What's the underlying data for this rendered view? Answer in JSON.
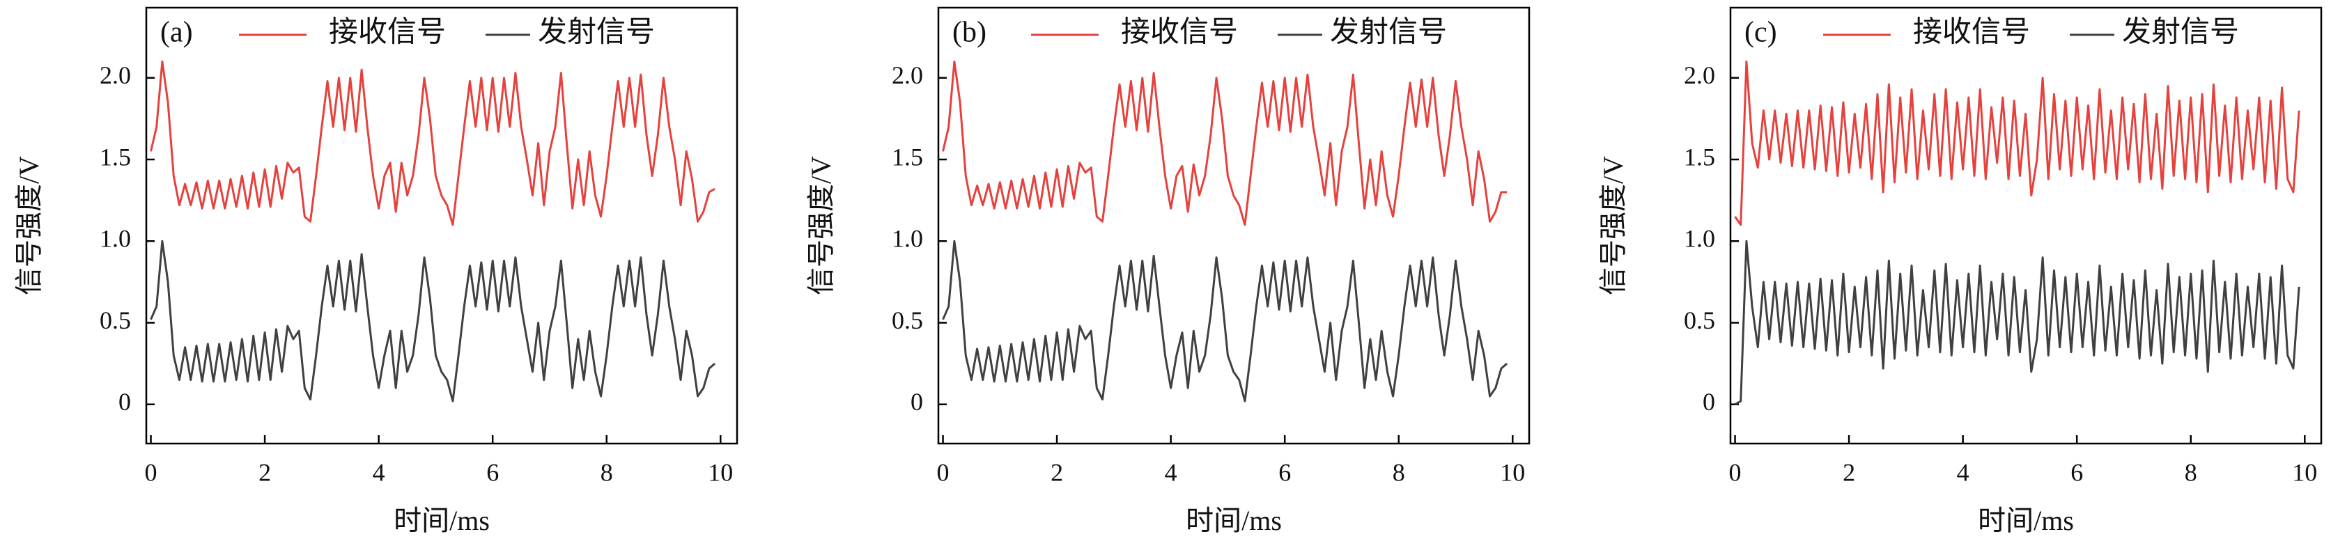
{
  "chart_data": [
    {
      "type": "line",
      "panel_label": "(a)",
      "x_label": "时间/ms",
      "y_label": "信号强度/V",
      "x": [
        0,
        0.1,
        0.2,
        0.3,
        0.4,
        0.5,
        0.6,
        0.7,
        0.8,
        0.9,
        1,
        1.1,
        1.2,
        1.3,
        1.4,
        1.5,
        1.6,
        1.7,
        1.8,
        1.9,
        2,
        2.1,
        2.2,
        2.3,
        2.4,
        2.5,
        2.6,
        2.7,
        2.8,
        2.9,
        3,
        3.1,
        3.2,
        3.3,
        3.4,
        3.5,
        3.6,
        3.7,
        3.8,
        3.9,
        4,
        4.1,
        4.2,
        4.3,
        4.4,
        4.5,
        4.6,
        4.7,
        4.8,
        4.9,
        5,
        5.1,
        5.2,
        5.3,
        5.4,
        5.5,
        5.6,
        5.7,
        5.8,
        5.9,
        6,
        6.1,
        6.2,
        6.3,
        6.4,
        6.5,
        6.6,
        6.7,
        6.8,
        6.9,
        7,
        7.1,
        7.2,
        7.3,
        7.4,
        7.5,
        7.6,
        7.7,
        7.8,
        7.9,
        8,
        8.1,
        8.2,
        8.3,
        8.4,
        8.5,
        8.6,
        8.7,
        8.8,
        8.9,
        9,
        9.1,
        9.2,
        9.3,
        9.4,
        9.5,
        9.6,
        9.7,
        9.8,
        9.9
      ],
      "series": [
        {
          "name": "接收信号",
          "color": "#e5413d",
          "values": [
            1.55,
            1.7,
            2.1,
            1.85,
            1.4,
            1.22,
            1.35,
            1.22,
            1.36,
            1.2,
            1.37,
            1.2,
            1.37,
            1.2,
            1.38,
            1.21,
            1.4,
            1.2,
            1.42,
            1.21,
            1.44,
            1.21,
            1.46,
            1.26,
            1.48,
            1.42,
            1.45,
            1.15,
            1.12,
            1.4,
            1.7,
            1.98,
            1.7,
            2.0,
            1.68,
            2.0,
            1.67,
            2.05,
            1.7,
            1.4,
            1.2,
            1.4,
            1.48,
            1.18,
            1.48,
            1.28,
            1.4,
            1.65,
            2.0,
            1.75,
            1.4,
            1.28,
            1.22,
            1.1,
            1.4,
            1.7,
            1.98,
            1.7,
            2.0,
            1.68,
            2.0,
            1.67,
            2.0,
            1.7,
            2.03,
            1.7,
            1.5,
            1.28,
            1.6,
            1.22,
            1.55,
            1.7,
            2.03,
            1.6,
            1.2,
            1.5,
            1.22,
            1.55,
            1.28,
            1.15,
            1.4,
            1.7,
            1.98,
            1.7,
            2.0,
            1.7,
            2.02,
            1.65,
            1.4,
            1.65,
            2.0,
            1.7,
            1.5,
            1.22,
            1.55,
            1.38,
            1.12,
            1.18,
            1.3,
            1.32
          ]
        },
        {
          "name": "发射信号",
          "color": "#404040",
          "values": [
            0.52,
            0.6,
            1.0,
            0.75,
            0.3,
            0.15,
            0.35,
            0.15,
            0.36,
            0.14,
            0.37,
            0.14,
            0.37,
            0.14,
            0.38,
            0.15,
            0.4,
            0.14,
            0.42,
            0.15,
            0.44,
            0.15,
            0.46,
            0.2,
            0.48,
            0.4,
            0.45,
            0.1,
            0.03,
            0.3,
            0.6,
            0.85,
            0.6,
            0.88,
            0.58,
            0.88,
            0.57,
            0.92,
            0.6,
            0.3,
            0.1,
            0.3,
            0.45,
            0.1,
            0.45,
            0.2,
            0.3,
            0.55,
            0.9,
            0.65,
            0.3,
            0.2,
            0.15,
            0.02,
            0.3,
            0.6,
            0.85,
            0.6,
            0.87,
            0.58,
            0.88,
            0.57,
            0.88,
            0.6,
            0.9,
            0.6,
            0.4,
            0.2,
            0.5,
            0.15,
            0.45,
            0.6,
            0.88,
            0.5,
            0.1,
            0.4,
            0.15,
            0.45,
            0.2,
            0.05,
            0.3,
            0.6,
            0.85,
            0.6,
            0.88,
            0.6,
            0.9,
            0.55,
            0.3,
            0.55,
            0.88,
            0.6,
            0.4,
            0.15,
            0.45,
            0.3,
            0.05,
            0.1,
            0.22,
            0.25
          ]
        }
      ],
      "xlim": [
        -0.08,
        10.29
      ],
      "ylim": [
        -0.24,
        2.43
      ],
      "xticks": [
        0,
        2,
        4,
        6,
        8,
        10
      ],
      "yticks": [
        0,
        0.5,
        {
          "value": 1,
          "label": "1.0"
        },
        1.5,
        {
          "value": 2,
          "label": "2.0"
        }
      ]
    },
    {
      "type": "line",
      "panel_label": "(b)",
      "x_label": "时间/ms",
      "y_label": "信号强度/V",
      "x": [
        0,
        0.1,
        0.2,
        0.3,
        0.4,
        0.5,
        0.6,
        0.7,
        0.8,
        0.9,
        1,
        1.1,
        1.2,
        1.3,
        1.4,
        1.5,
        1.6,
        1.7,
        1.8,
        1.9,
        2,
        2.1,
        2.2,
        2.3,
        2.4,
        2.5,
        2.6,
        2.7,
        2.8,
        2.9,
        3,
        3.1,
        3.2,
        3.3,
        3.4,
        3.5,
        3.6,
        3.7,
        3.8,
        3.9,
        4,
        4.1,
        4.2,
        4.3,
        4.4,
        4.5,
        4.6,
        4.7,
        4.8,
        4.9,
        5,
        5.1,
        5.2,
        5.3,
        5.4,
        5.5,
        5.6,
        5.7,
        5.8,
        5.9,
        6,
        6.1,
        6.2,
        6.3,
        6.4,
        6.5,
        6.6,
        6.7,
        6.8,
        6.9,
        7,
        7.1,
        7.2,
        7.3,
        7.4,
        7.5,
        7.6,
        7.7,
        7.8,
        7.9,
        8,
        8.1,
        8.2,
        8.3,
        8.4,
        8.5,
        8.6,
        8.7,
        8.8,
        8.9,
        9,
        9.1,
        9.2,
        9.3,
        9.4,
        9.5,
        9.6,
        9.7,
        9.8,
        9.9
      ],
      "series": [
        {
          "name": "接收信号",
          "color": "#e5413d",
          "values": [
            1.55,
            1.7,
            2.1,
            1.85,
            1.4,
            1.22,
            1.34,
            1.22,
            1.35,
            1.2,
            1.36,
            1.2,
            1.37,
            1.2,
            1.38,
            1.21,
            1.4,
            1.2,
            1.42,
            1.21,
            1.44,
            1.21,
            1.46,
            1.26,
            1.48,
            1.42,
            1.45,
            1.15,
            1.12,
            1.4,
            1.7,
            1.96,
            1.7,
            1.98,
            1.68,
            2.0,
            1.67,
            2.03,
            1.7,
            1.4,
            1.2,
            1.4,
            1.46,
            1.18,
            1.47,
            1.28,
            1.4,
            1.65,
            2.0,
            1.75,
            1.4,
            1.28,
            1.22,
            1.1,
            1.4,
            1.7,
            1.97,
            1.7,
            1.98,
            1.68,
            2.0,
            1.67,
            2.0,
            1.7,
            2.02,
            1.7,
            1.5,
            1.28,
            1.6,
            1.22,
            1.55,
            1.7,
            2.02,
            1.6,
            1.2,
            1.5,
            1.22,
            1.55,
            1.28,
            1.15,
            1.4,
            1.7,
            1.97,
            1.7,
            1.99,
            1.7,
            2.0,
            1.65,
            1.4,
            1.65,
            1.98,
            1.7,
            1.5,
            1.22,
            1.55,
            1.38,
            1.12,
            1.18,
            1.3,
            1.3
          ]
        },
        {
          "name": "发射信号",
          "color": "#404040",
          "values": [
            0.52,
            0.6,
            1.0,
            0.75,
            0.3,
            0.15,
            0.34,
            0.15,
            0.35,
            0.14,
            0.36,
            0.14,
            0.37,
            0.14,
            0.38,
            0.15,
            0.4,
            0.14,
            0.42,
            0.15,
            0.44,
            0.15,
            0.46,
            0.2,
            0.48,
            0.4,
            0.45,
            0.1,
            0.03,
            0.3,
            0.6,
            0.85,
            0.6,
            0.88,
            0.58,
            0.88,
            0.57,
            0.91,
            0.6,
            0.3,
            0.1,
            0.3,
            0.44,
            0.1,
            0.45,
            0.2,
            0.3,
            0.55,
            0.9,
            0.65,
            0.3,
            0.2,
            0.15,
            0.02,
            0.3,
            0.6,
            0.85,
            0.6,
            0.87,
            0.58,
            0.88,
            0.57,
            0.88,
            0.6,
            0.9,
            0.6,
            0.4,
            0.2,
            0.5,
            0.15,
            0.45,
            0.6,
            0.88,
            0.5,
            0.1,
            0.4,
            0.15,
            0.45,
            0.2,
            0.05,
            0.3,
            0.6,
            0.85,
            0.6,
            0.88,
            0.6,
            0.9,
            0.55,
            0.3,
            0.55,
            0.88,
            0.6,
            0.4,
            0.15,
            0.45,
            0.3,
            0.05,
            0.1,
            0.22,
            0.25
          ]
        }
      ],
      "xlim": [
        -0.08,
        10.29
      ],
      "ylim": [
        -0.24,
        2.43
      ],
      "xticks": [
        0,
        2,
        4,
        6,
        8,
        10
      ],
      "yticks": [
        0,
        0.5,
        {
          "value": 1,
          "label": "1.0"
        },
        1.5,
        {
          "value": 2,
          "label": "2.0"
        }
      ]
    },
    {
      "type": "line",
      "panel_label": "(c)",
      "x_label": "时间/ms",
      "y_label": "信号强度/V",
      "x": [
        0,
        0.1,
        0.2,
        0.3,
        0.4,
        0.5,
        0.6,
        0.7,
        0.8,
        0.9,
        1,
        1.1,
        1.2,
        1.3,
        1.4,
        1.5,
        1.6,
        1.7,
        1.8,
        1.9,
        2,
        2.1,
        2.2,
        2.3,
        2.4,
        2.5,
        2.6,
        2.7,
        2.8,
        2.9,
        3,
        3.1,
        3.2,
        3.3,
        3.4,
        3.5,
        3.6,
        3.7,
        3.8,
        3.9,
        4,
        4.1,
        4.2,
        4.3,
        4.4,
        4.5,
        4.6,
        4.7,
        4.8,
        4.9,
        5,
        5.1,
        5.2,
        5.3,
        5.4,
        5.5,
        5.6,
        5.7,
        5.8,
        5.9,
        6,
        6.1,
        6.2,
        6.3,
        6.4,
        6.5,
        6.6,
        6.7,
        6.8,
        6.9,
        7,
        7.1,
        7.2,
        7.3,
        7.4,
        7.5,
        7.6,
        7.7,
        7.8,
        7.9,
        8,
        8.1,
        8.2,
        8.3,
        8.4,
        8.5,
        8.6,
        8.7,
        8.8,
        8.9,
        9,
        9.1,
        9.2,
        9.3,
        9.4,
        9.5,
        9.6,
        9.7,
        9.8,
        9.9
      ],
      "series": [
        {
          "name": "接收信号",
          "color": "#e5413d",
          "values": [
            1.15,
            1.1,
            2.1,
            1.6,
            1.45,
            1.8,
            1.5,
            1.8,
            1.48,
            1.78,
            1.46,
            1.8,
            1.45,
            1.8,
            1.44,
            1.83,
            1.43,
            1.82,
            1.4,
            1.85,
            1.42,
            1.78,
            1.45,
            1.84,
            1.38,
            1.9,
            1.3,
            1.96,
            1.36,
            1.88,
            1.42,
            1.93,
            1.38,
            1.8,
            1.44,
            1.9,
            1.4,
            1.93,
            1.38,
            1.85,
            1.44,
            1.88,
            1.4,
            1.93,
            1.38,
            1.82,
            1.48,
            1.88,
            1.38,
            1.86,
            1.4,
            1.78,
            1.28,
            1.5,
            2.0,
            1.38,
            1.9,
            1.44,
            1.86,
            1.4,
            1.88,
            1.44,
            1.83,
            1.38,
            1.93,
            1.42,
            1.8,
            1.38,
            1.88,
            1.44,
            1.84,
            1.36,
            1.9,
            1.38,
            1.78,
            1.32,
            1.95,
            1.4,
            1.86,
            1.38,
            1.88,
            1.36,
            1.9,
            1.3,
            1.96,
            1.4,
            1.83,
            1.36,
            1.88,
            1.38,
            1.8,
            1.44,
            1.88,
            1.36,
            1.86,
            1.32,
            1.94,
            1.38,
            1.3,
            1.8
          ]
        },
        {
          "name": "发射信号",
          "color": "#404040",
          "values": [
            0,
            0.02,
            1.0,
            0.6,
            0.35,
            0.75,
            0.4,
            0.75,
            0.38,
            0.74,
            0.36,
            0.75,
            0.35,
            0.74,
            0.34,
            0.77,
            0.33,
            0.76,
            0.3,
            0.8,
            0.32,
            0.72,
            0.35,
            0.78,
            0.3,
            0.82,
            0.22,
            0.88,
            0.28,
            0.8,
            0.33,
            0.85,
            0.3,
            0.7,
            0.35,
            0.82,
            0.32,
            0.86,
            0.3,
            0.76,
            0.35,
            0.8,
            0.32,
            0.85,
            0.3,
            0.75,
            0.4,
            0.8,
            0.3,
            0.78,
            0.32,
            0.7,
            0.2,
            0.4,
            0.9,
            0.3,
            0.82,
            0.35,
            0.78,
            0.32,
            0.8,
            0.35,
            0.75,
            0.3,
            0.85,
            0.33,
            0.72,
            0.3,
            0.8,
            0.35,
            0.76,
            0.28,
            0.82,
            0.3,
            0.7,
            0.25,
            0.86,
            0.32,
            0.78,
            0.3,
            0.8,
            0.28,
            0.82,
            0.2,
            0.88,
            0.32,
            0.75,
            0.28,
            0.8,
            0.3,
            0.72,
            0.35,
            0.8,
            0.28,
            0.78,
            0.25,
            0.85,
            0.3,
            0.22,
            0.72
          ]
        }
      ],
      "xlim": [
        -0.08,
        10.29
      ],
      "ylim": [
        -0.24,
        2.43
      ],
      "xticks": [
        0,
        2,
        4,
        6,
        8,
        10
      ],
      "yticks": [
        0,
        0.5,
        {
          "value": 1,
          "label": "1.0"
        },
        1.5,
        {
          "value": 2,
          "label": "2.0"
        }
      ]
    }
  ]
}
